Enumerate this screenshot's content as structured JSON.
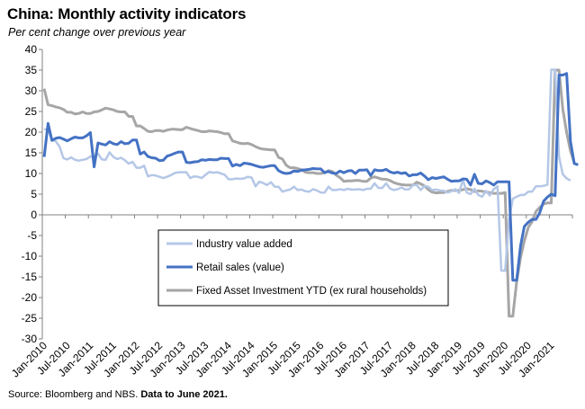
{
  "title": "China: Monthly activity indicators",
  "subtitle": "Per cent change over previous year",
  "source_prefix": "Source: Bloomberg and NBS. ",
  "source_bold": "Data to June 2021.",
  "colors": {
    "industry": "#b4c7e7",
    "retail": "#4472c4",
    "fai": "#a6a6a6",
    "axis": "#808080"
  },
  "chart_data": {
    "type": "line",
    "title": "China: Monthly activity indicators",
    "subtitle": "Per cent change over previous year",
    "x_start": "Jan-2010",
    "x_end": "Jun-2021",
    "frequency": "monthly",
    "xtick_labels": [
      "Jan-2010",
      "Jul-2010",
      "Jan-2011",
      "Jul-2011",
      "Jan-2012",
      "Jul-2012",
      "Jan-2013",
      "Jul-2013",
      "Jan-2014",
      "Jul-2014",
      "Jan-2015",
      "Jul-2015",
      "Jan-2016",
      "Jul-2016",
      "Jan-2017",
      "Jul-2017",
      "Jan-2018",
      "Jul-2018",
      "Jan-2019",
      "Jul-2019",
      "Jan-2020",
      "Jul-2020",
      "Jan-2021"
    ],
    "ylim": [
      -30,
      40
    ],
    "yticks": [
      -30,
      -25,
      -20,
      -15,
      -10,
      -5,
      0,
      5,
      10,
      15,
      20,
      25,
      30,
      35,
      40
    ],
    "grid": false,
    "legend_position": "lower-middle",
    "series": [
      {
        "name": "Industry value added",
        "color_key": "industry",
        "values": [
          20.7,
          20.7,
          18.1,
          17.8,
          16.5,
          13.7,
          13.4,
          13.9,
          13.3,
          13.1,
          13.3,
          13.5,
          14.1,
          14.1,
          14.8,
          13.4,
          13.3,
          15.1,
          14.0,
          13.5,
          13.8,
          13.2,
          12.4,
          12.8,
          11.4,
          11.4,
          11.9,
          9.3,
          9.6,
          9.5,
          9.2,
          8.9,
          9.2,
          9.6,
          10.1,
          10.3,
          10.3,
          10.3,
          8.9,
          9.3,
          9.2,
          8.9,
          9.7,
          10.4,
          10.2,
          10.3,
          10.0,
          9.7,
          8.6,
          8.6,
          8.8,
          8.7,
          8.8,
          9.2,
          9.0,
          6.9,
          8.0,
          7.7,
          7.2,
          7.9,
          6.8,
          6.8,
          5.6,
          5.9,
          6.1,
          6.8,
          6.0,
          6.1,
          5.7,
          5.6,
          6.2,
          5.9,
          5.4,
          5.4,
          6.8,
          6.0,
          6.0,
          6.2,
          6.0,
          6.3,
          6.1,
          6.1,
          6.2,
          6.0,
          6.3,
          6.3,
          7.6,
          6.5,
          6.5,
          7.6,
          6.4,
          6.0,
          6.2,
          6.6,
          6.1,
          6.2,
          7.2,
          7.2,
          6.0,
          7.0,
          6.8,
          6.0,
          6.1,
          5.9,
          5.8,
          5.4,
          5.7,
          6.2,
          5.3,
          8.5,
          5.4,
          5.0,
          6.3,
          4.8,
          4.4,
          5.8,
          4.7,
          6.2,
          6.9,
          -13.5,
          -13.5,
          -1.1,
          3.9,
          4.4,
          4.8,
          4.8,
          5.6,
          5.6,
          6.9,
          6.9,
          7.0,
          7.3,
          35.1,
          35.1,
          14.1,
          9.8,
          8.8,
          8.3
        ]
      },
      {
        "name": "Retail sales (value)",
        "color_key": "retail",
        "values": [
          14.0,
          22.1,
          18.0,
          18.5,
          18.7,
          18.3,
          17.9,
          18.4,
          18.8,
          18.6,
          18.6,
          19.1,
          19.9,
          11.6,
          17.4,
          17.1,
          16.9,
          17.7,
          17.2,
          17.0,
          17.7,
          17.2,
          17.3,
          18.1,
          18.1,
          14.7,
          15.2,
          14.1,
          13.8,
          13.7,
          13.1,
          13.2,
          14.2,
          14.5,
          14.9,
          15.2,
          15.2,
          12.7,
          12.6,
          12.8,
          12.9,
          13.3,
          13.2,
          13.4,
          13.3,
          13.3,
          13.7,
          13.6,
          13.6,
          11.8,
          12.2,
          11.9,
          12.5,
          12.4,
          12.2,
          11.9,
          11.6,
          11.5,
          11.7,
          11.9,
          11.9,
          10.7,
          10.2,
          10.0,
          10.1,
          10.6,
          10.5,
          10.8,
          10.9,
          11.0,
          11.2,
          11.1,
          11.1,
          10.2,
          10.5,
          10.1,
          10.0,
          10.6,
          10.2,
          10.6,
          10.7,
          10.0,
          10.8,
          10.8,
          10.9,
          9.5,
          10.9,
          10.7,
          10.7,
          11.0,
          10.4,
          10.1,
          10.3,
          10.0,
          10.2,
          9.4,
          9.7,
          9.7,
          10.1,
          9.4,
          8.5,
          9.0,
          8.8,
          9.0,
          9.2,
          8.6,
          8.1,
          8.2,
          8.2,
          8.7,
          8.6,
          7.2,
          9.8,
          7.6,
          7.5,
          8.2,
          7.8,
          7.2,
          8.0,
          8.0,
          8.0,
          8.0,
          -15.8,
          -15.8,
          -7.5,
          -2.8,
          -1.8,
          -1.1,
          -1.1,
          0.5,
          3.3,
          4.3,
          5.0,
          4.6,
          33.8,
          33.8,
          34.2,
          17.7,
          12.4,
          12.1
        ]
      },
      {
        "name": "Fixed Asset Investment YTD (ex rural households)",
        "color_key": "fai",
        "values": [
          30.5,
          26.6,
          26.4,
          26.1,
          25.9,
          25.5,
          24.8,
          24.8,
          24.4,
          24.5,
          24.9,
          24.5,
          24.5,
          24.9,
          25.0,
          25.4,
          25.8,
          25.6,
          25.4,
          25.0,
          24.9,
          24.9,
          23.8,
          23.8,
          21.5,
          21.5,
          20.9,
          20.2,
          20.1,
          20.4,
          20.4,
          20.2,
          20.5,
          20.7,
          20.7,
          20.6,
          20.6,
          21.2,
          20.9,
          20.6,
          20.4,
          20.1,
          20.1,
          20.3,
          20.2,
          20.1,
          19.9,
          19.6,
          19.6,
          17.9,
          17.6,
          17.3,
          17.2,
          17.3,
          17.0,
          16.5,
          16.1,
          15.9,
          15.8,
          15.7,
          15.7,
          13.9,
          13.5,
          12.0,
          11.4,
          11.4,
          11.2,
          10.9,
          10.3,
          10.2,
          10.2,
          10.0,
          10.0,
          10.2,
          10.7,
          10.5,
          9.6,
          9.0,
          8.1,
          8.2,
          8.2,
          8.3,
          8.3,
          8.1,
          8.1,
          8.9,
          9.2,
          8.9,
          8.6,
          8.6,
          8.3,
          7.8,
          7.5,
          7.3,
          7.2,
          7.2,
          7.2,
          7.9,
          7.5,
          7.0,
          6.1,
          5.5,
          5.3,
          5.4,
          5.4,
          5.7,
          5.9,
          5.9,
          5.9,
          6.1,
          6.3,
          6.1,
          5.6,
          5.8,
          5.7,
          5.5,
          5.4,
          5.2,
          5.2,
          5.2,
          5.4,
          -24.5,
          -24.5,
          -16.1,
          -10.3,
          -6.3,
          -3.1,
          -1.6,
          0.8,
          1.8,
          2.6,
          2.9,
          2.9,
          35.0,
          35.0,
          25.6,
          19.9,
          15.4,
          12.6
        ]
      }
    ]
  }
}
